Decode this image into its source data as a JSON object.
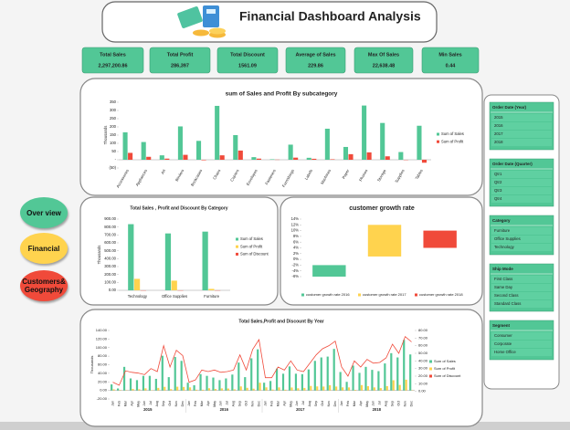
{
  "header": {
    "title": "Financial Dashboard Analysis"
  },
  "kpis": [
    {
      "label": "Total Sales",
      "value": "2,297,200.86"
    },
    {
      "label": "Total Profit",
      "value": "286,397"
    },
    {
      "label": "Total Discount",
      "value": "1561.09"
    },
    {
      "label": "Average of Sales",
      "value": "229.86"
    },
    {
      "label": "Max Of Sales",
      "value": "22,638.48"
    },
    {
      "label": "Min Sales",
      "value": "0.44"
    }
  ],
  "nav": [
    "Over view",
    "Financial",
    "Customers& Geography"
  ],
  "slicers": [
    {
      "title": "Order Date (Year)",
      "items": [
        "2015",
        "2016",
        "2017",
        "2018"
      ]
    },
    {
      "title": "Order Date (Quarter)",
      "items": [
        "Qtr1",
        "Qtr2",
        "Qtr3",
        "Qtr4"
      ]
    },
    {
      "title": "Category",
      "items": [
        "Furniture",
        "Office Supplies",
        "Technology"
      ]
    },
    {
      "title": "Ship Mode",
      "items": [
        "First Class",
        "Same Day",
        "Second Class",
        "Standard Class"
      ]
    },
    {
      "title": "Segment",
      "items": [
        "Consumer",
        "Corporate",
        "Home Office"
      ]
    }
  ],
  "chart_data": [
    {
      "type": "bar",
      "title": "sum of Sales and Profit By subcategory",
      "y_label": "Thousands",
      "categories": [
        "Accessories",
        "Appliances",
        "Art",
        "Binders",
        "Bookcases",
        "Chairs",
        "Copiers",
        "Envelopes",
        "Fasteners",
        "Furnishings",
        "Labels",
        "Machines",
        "Paper",
        "Phones",
        "Storage",
        "Supplies",
        "Tables"
      ],
      "series": [
        {
          "name": "Sum of Sales",
          "color": "#52c796",
          "values": [
            167,
            108,
            27,
            203,
            115,
            328,
            150,
            16,
            3,
            92,
            12,
            189,
            78,
            330,
            224,
            47,
            207
          ]
        },
        {
          "name": "Sum of Profit",
          "color": "#f04a3a",
          "values": [
            42,
            18,
            7,
            30,
            -3,
            27,
            56,
            7,
            1,
            13,
            6,
            3,
            34,
            45,
            21,
            -1,
            -18
          ]
        }
      ],
      "ylim": [
        -50,
        350
      ],
      "yticks": [
        {
          "value": -50,
          "label": "(50)"
        },
        {
          "value": 0,
          "label": "-"
        },
        50,
        100,
        150,
        200,
        250,
        300,
        350
      ],
      "legend": "right"
    },
    {
      "type": "bar",
      "title": "Total Sales , Profit and Discount By Category",
      "y_label": "Thousands",
      "categories": [
        "Technology",
        "Office Supplies",
        "Furniture"
      ],
      "series": [
        {
          "name": "Sum of Sales",
          "color": "#52c796",
          "values": [
            836,
            719,
            742
          ]
        },
        {
          "name": "Sum of Profit",
          "color": "#ffd34e",
          "values": [
            145,
            122,
            18
          ]
        },
        {
          "name": "Sum of Discount",
          "color": "#f04a3a",
          "values": [
            0.24,
            0.31,
            0.37
          ]
        }
      ],
      "ylim": [
        0,
        900
      ],
      "yticks": [
        {
          "value": 0,
          "label": "0.00"
        },
        {
          "value": 100,
          "label": "100.00"
        },
        {
          "value": 200,
          "label": "200.00"
        },
        {
          "value": 300,
          "label": "300.00"
        },
        {
          "value": 400,
          "label": "400.00"
        },
        {
          "value": 500,
          "label": "500.00"
        },
        {
          "value": 600,
          "label": "600.00"
        },
        {
          "value": 700,
          "label": "700.00"
        },
        {
          "value": 800,
          "label": "800.00"
        },
        {
          "value": 900,
          "label": "900.00"
        }
      ],
      "legend": "right"
    },
    {
      "type": "floating_bar",
      "title": "customer growth rate",
      "bars": [
        {
          "name": "customer growth rate 2016",
          "color": "#52c796",
          "low": -6,
          "high": -2
        },
        {
          "name": "customer growth rate 2017",
          "color": "#ffd34e",
          "low": 1,
          "high": 12
        },
        {
          "name": "customer growth rate 2018",
          "color": "#f04a3a",
          "low": 4,
          "high": 10
        }
      ],
      "ylim": [
        -6,
        14
      ],
      "yticks": [
        {
          "value": -6,
          "label": "-6%"
        },
        {
          "value": -4,
          "label": "-4%"
        },
        {
          "value": -2,
          "label": "-2%"
        },
        {
          "value": 0,
          "label": "0%"
        },
        {
          "value": 2,
          "label": "2%"
        },
        {
          "value": 4,
          "label": "4%"
        },
        {
          "value": 6,
          "label": "6%"
        },
        {
          "value": 8,
          "label": "8%"
        },
        {
          "value": 10,
          "label": "10%"
        },
        {
          "value": 12,
          "label": "12%"
        },
        {
          "value": 14,
          "label": "14%"
        }
      ],
      "legend": "bottom"
    },
    {
      "type": "combo",
      "title": "Total Sales,Profit and Discount By Year",
      "y_label": "Thousands",
      "categories": [
        "Jan",
        "Feb",
        "Mar",
        "Apr",
        "May",
        "Jun",
        "Jul",
        "Aug",
        "Sep",
        "Oct",
        "Nov",
        "Dec",
        "Jan",
        "Feb",
        "Mar",
        "Apr",
        "May",
        "Jun",
        "Jul",
        "Aug",
        "Sep",
        "Oct",
        "Nov",
        "Dec",
        "Jan",
        "Feb",
        "Mar",
        "Apr",
        "May",
        "Jun",
        "Jul",
        "Aug",
        "Sep",
        "Oct",
        "Nov",
        "Dec",
        "Jan",
        "Feb",
        "Mar",
        "Apr",
        "May",
        "Jun",
        "Jul",
        "Aug",
        "Sep",
        "Oct",
        "Nov",
        "Dec"
      ],
      "groups": [
        "2015",
        "2016",
        "2017",
        "2018"
      ],
      "series": [
        {
          "name": "Sum of Sales",
          "color": "#52c796",
          "values": [
            14,
            4.5,
            55,
            28,
            24,
            34,
            34,
            27,
            81,
            31,
            78,
            69,
            18,
            12,
            38,
            34,
            30,
            24,
            28,
            37,
            65,
            31,
            75,
            96,
            18,
            22,
            51,
            39,
            56,
            39,
            38,
            49,
            69,
            77,
            79,
            97,
            43,
            20,
            58,
            41,
            55,
            48,
            45,
            63,
            87,
            77,
            118,
            84
          ]
        },
        {
          "name": "Sum of Profit",
          "color": "#ffd34e",
          "values": [
            2.5,
            0.9,
            0.5,
            3.5,
            2.7,
            4.9,
            0.2,
            5.9,
            8.3,
            3,
            8.6,
            8.1,
            7.1,
            1.6,
            1.6,
            5,
            3.4,
            4.7,
            4.4,
            2.5,
            9.3,
            6,
            4,
            17.9,
            7.1,
            2,
            7,
            1.6,
            6.8,
            5,
            5.8,
            10.4,
            9.3,
            9,
            12,
            9,
            7.1,
            7,
            1.3,
            12.4,
            9.8,
            7,
            5.4,
            10,
            23.7,
            12.7,
            25,
            0.5
          ]
        },
        {
          "name": "Sum of Discount",
          "color": "#f04a3a",
          "axis": "y2",
          "values": [
            12,
            8,
            27,
            25,
            24,
            22,
            30,
            26,
            60,
            32,
            54,
            47,
            12,
            15,
            28,
            26,
            28,
            25,
            26,
            28,
            48,
            28,
            55,
            68,
            18,
            18,
            32,
            28,
            40,
            28,
            26,
            37,
            48,
            56,
            60,
            66,
            32,
            20,
            40,
            32,
            42,
            37,
            38,
            44,
            62,
            50,
            72,
            65
          ]
        }
      ],
      "ylim": [
        -20,
        140
      ],
      "yticks": [
        {
          "value": -20,
          "label": "-20.00"
        },
        {
          "value": 0,
          "label": "0.00"
        },
        {
          "value": 20,
          "label": "20.00"
        },
        {
          "value": 40,
          "label": "40.00"
        },
        {
          "value": 60,
          "label": "60.00"
        },
        {
          "value": 80,
          "label": "80.00"
        },
        {
          "value": 100,
          "label": "100.00"
        },
        {
          "value": 120,
          "label": "120.00"
        },
        {
          "value": 140,
          "label": "140.00"
        }
      ],
      "y2lim": [
        -10,
        80
      ],
      "y2ticks": [
        {
          "value": 0,
          "label": "0.00"
        },
        {
          "value": 10,
          "label": "10.00"
        },
        {
          "value": 20,
          "label": "20.00"
        },
        {
          "value": 30,
          "label": "30.00"
        },
        {
          "value": 40,
          "label": "40.00"
        },
        {
          "value": 50,
          "label": "50.00"
        },
        {
          "value": 60,
          "label": "60.00"
        },
        {
          "value": 70,
          "label": "70.00"
        },
        {
          "value": 80,
          "label": "80.00"
        }
      ],
      "legend": "right"
    }
  ]
}
